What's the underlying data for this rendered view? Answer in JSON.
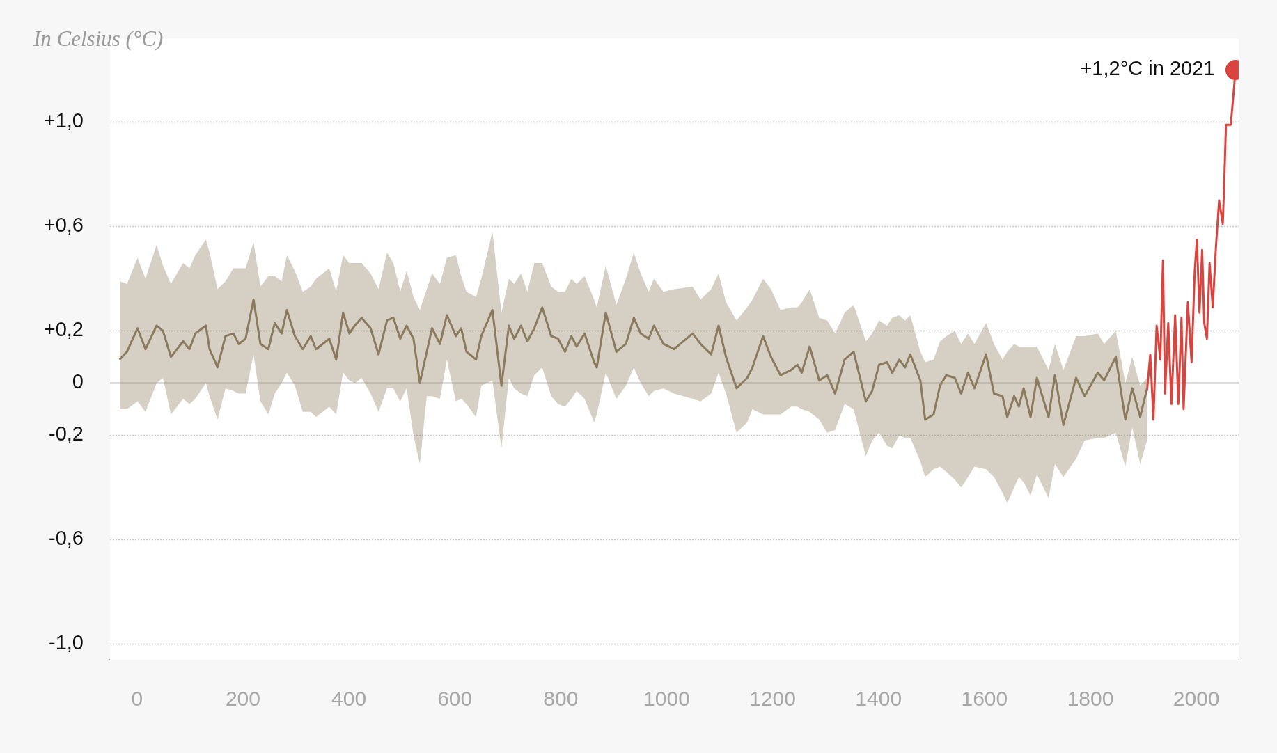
{
  "chart_data": {
    "type": "line",
    "ylabel": "In Celsius (°C)",
    "annotations": [
      "+1,2°C in 2021"
    ],
    "xlim": [
      -51,
      2080
    ],
    "ylim": [
      -1.06,
      1.32
    ],
    "xticks": [
      0,
      200,
      400,
      600,
      800,
      1000,
      1200,
      1400,
      1600,
      1800,
      2000
    ],
    "yticks": [
      {
        "value": 1,
        "label": "+1,0"
      },
      {
        "value": 0.6,
        "label": "+0,6"
      },
      {
        "value": 0.2,
        "label": "+0,2"
      },
      0,
      {
        "value": -0.2,
        "label": "-0,2"
      },
      {
        "value": -0.6,
        "label": "-0,6"
      },
      {
        "value": -1,
        "label": "-1,0"
      }
    ],
    "grid": "y",
    "legend": false,
    "marker": "none",
    "series": [
      {
        "color": "#8b7a5c",
        "x": [
          -33,
          -19,
          1,
          16,
          37,
          49,
          64,
          87,
          99,
          110,
          130,
          137,
          152,
          167,
          182,
          192,
          205,
          220,
          233,
          248,
          260,
          273,
          283,
          298,
          313,
          328,
          338,
          363,
          376,
          389,
          401,
          411,
          424,
          441,
          456,
          472,
          484,
          497,
          509,
          522,
          534,
          547,
          557,
          572,
          585,
          602,
          612,
          622,
          640,
          650,
          671,
          688,
          702,
          712,
          725,
          737,
          750,
          765,
          782,
          795,
          808,
          820,
          830,
          845,
          863,
          868,
          885,
          905,
          923,
          938,
          951,
          966,
          976,
          994,
          1014,
          1049,
          1064,
          1084,
          1098,
          1112,
          1132,
          1152,
          1162,
          1182,
          1197,
          1215,
          1235,
          1247,
          1255,
          1270,
          1288,
          1303,
          1318,
          1336,
          1353,
          1376,
          1388,
          1401,
          1416,
          1426,
          1439,
          1450,
          1460,
          1479,
          1488,
          1504,
          1516,
          1528,
          1544,
          1556,
          1569,
          1581,
          1603,
          1618,
          1634,
          1643,
          1656,
          1665,
          1674,
          1687,
          1699,
          1721,
          1733,
          1749,
          1773,
          1789,
          1814,
          1826,
          1848,
          1866,
          1879,
          1894,
          1907
        ],
        "values": [
          0.09,
          0.12,
          0.21,
          0.13,
          0.22,
          0.2,
          0.1,
          0.16,
          0.13,
          0.19,
          0.22,
          0.13,
          0.06,
          0.18,
          0.19,
          0.15,
          0.17,
          0.32,
          0.15,
          0.13,
          0.23,
          0.19,
          0.28,
          0.18,
          0.13,
          0.18,
          0.13,
          0.17,
          0.09,
          0.27,
          0.19,
          0.22,
          0.25,
          0.21,
          0.11,
          0.24,
          0.25,
          0.17,
          0.22,
          0.17,
          0,
          0.12,
          0.21,
          0.15,
          0.26,
          0.18,
          0.21,
          0.12,
          0.09,
          0.18,
          0.28,
          -0.01,
          0.22,
          0.17,
          0.22,
          0.16,
          0.21,
          0.29,
          0.18,
          0.17,
          0.12,
          0.18,
          0.14,
          0.19,
          0.08,
          0.06,
          0.27,
          0.12,
          0.15,
          0.25,
          0.19,
          0.17,
          0.22,
          0.15,
          0.13,
          0.19,
          0.15,
          0.11,
          0.22,
          0.1,
          -0.02,
          0.02,
          0.06,
          0.18,
          0.1,
          0.03,
          0.05,
          0.07,
          0.04,
          0.14,
          0.01,
          0.03,
          -0.04,
          0.09,
          0.12,
          -0.07,
          -0.03,
          0.07,
          0.08,
          0.04,
          0.09,
          0.06,
          0.11,
          0.01,
          -0.14,
          -0.12,
          -0.01,
          0.03,
          0.02,
          -0.04,
          0.04,
          -0.02,
          0.11,
          -0.04,
          -0.05,
          -0.13,
          -0.05,
          -0.09,
          -0.02,
          -0.13,
          0.02,
          -0.13,
          0.03,
          -0.16,
          0.02,
          -0.05,
          0.04,
          0.01,
          0.1,
          -0.14,
          -0.02,
          -0.13,
          -0.02
        ],
        "upper": [
          0.39,
          0.38,
          0.48,
          0.4,
          0.53,
          0.45,
          0.38,
          0.46,
          0.44,
          0.49,
          0.55,
          0.5,
          0.36,
          0.39,
          0.44,
          0.44,
          0.44,
          0.54,
          0.37,
          0.41,
          0.41,
          0.39,
          0.49,
          0.43,
          0.35,
          0.37,
          0.4,
          0.44,
          0.35,
          0.49,
          0.46,
          0.46,
          0.46,
          0.42,
          0.36,
          0.5,
          0.46,
          0.35,
          0.43,
          0.33,
          0.28,
          0.36,
          0.42,
          0.38,
          0.48,
          0.49,
          0.41,
          0.35,
          0.33,
          0.4,
          0.58,
          0.27,
          0.4,
          0.38,
          0.42,
          0.35,
          0.46,
          0.46,
          0.37,
          0.35,
          0.35,
          0.4,
          0.38,
          0.41,
          0.32,
          0.29,
          0.45,
          0.3,
          0.4,
          0.5,
          0.42,
          0.35,
          0.4,
          0.35,
          0.36,
          0.37,
          0.32,
          0.36,
          0.42,
          0.31,
          0.24,
          0.29,
          0.32,
          0.4,
          0.36,
          0.28,
          0.29,
          0.29,
          0.31,
          0.36,
          0.25,
          0.24,
          0.19,
          0.27,
          0.3,
          0.16,
          0.19,
          0.24,
          0.22,
          0.25,
          0.26,
          0.24,
          0.26,
          0.12,
          0.08,
          0.09,
          0.16,
          0.18,
          0.2,
          0.15,
          0.19,
          0.15,
          0.23,
          0.15,
          0.09,
          0.12,
          0.15,
          0.14,
          0.14,
          0.14,
          0.14,
          0.05,
          0.15,
          0.05,
          0.18,
          0.18,
          0.19,
          0.15,
          0.2,
          0,
          0.1,
          -0.01,
          0.02
        ],
        "lower": [
          -0.1,
          -0.1,
          -0.07,
          -0.11,
          0,
          0.02,
          -0.12,
          -0.06,
          -0.08,
          -0.06,
          0,
          -0.05,
          -0.14,
          -0.02,
          -0.03,
          -0.04,
          -0.04,
          0.11,
          -0.07,
          -0.12,
          -0.04,
          0,
          0.04,
          -0.01,
          -0.11,
          -0.11,
          -0.13,
          -0.09,
          -0.12,
          0.04,
          0.01,
          0,
          0.02,
          -0.04,
          -0.11,
          -0.02,
          -0.02,
          -0.07,
          -0.02,
          -0.2,
          -0.31,
          -0.05,
          -0.05,
          -0.06,
          0.09,
          -0.07,
          -0.06,
          -0.08,
          -0.13,
          -0.01,
          0.01,
          -0.25,
          0.02,
          -0.02,
          -0.04,
          -0.05,
          0.03,
          0.06,
          -0.05,
          -0.08,
          -0.09,
          -0.06,
          -0.03,
          -0.06,
          -0.15,
          -0.12,
          0.04,
          -0.06,
          -0.01,
          0.06,
          0,
          -0.05,
          -0.03,
          -0.02,
          -0.04,
          -0.06,
          -0.07,
          -0.04,
          0.04,
          -0.04,
          -0.19,
          -0.15,
          -0.1,
          -0.12,
          -0.12,
          -0.12,
          -0.09,
          -0.09,
          -0.1,
          -0.11,
          -0.14,
          -0.19,
          -0.18,
          -0.08,
          -0.1,
          -0.28,
          -0.22,
          -0.19,
          -0.24,
          -0.25,
          -0.2,
          -0.21,
          -0.21,
          -0.3,
          -0.36,
          -0.33,
          -0.32,
          -0.34,
          -0.37,
          -0.4,
          -0.36,
          -0.32,
          -0.33,
          -0.36,
          -0.42,
          -0.46,
          -0.4,
          -0.36,
          -0.38,
          -0.43,
          -0.35,
          -0.44,
          -0.31,
          -0.36,
          -0.29,
          -0.22,
          -0.21,
          -0.21,
          -0.19,
          -0.32,
          -0.17,
          -0.31,
          -0.22
        ]
      },
      {
        "color": "#d9443f",
        "x": [
          1907,
          1913,
          1919,
          1925,
          1932,
          1937,
          1941,
          1947,
          1953,
          1960,
          1966,
          1972,
          1976,
          1984,
          1991,
          1997,
          2001,
          2006,
          2011,
          2015,
          2020,
          2025,
          2031,
          2037,
          2043,
          2050,
          2053,
          2056,
          2065,
          2069,
          2074
        ],
        "values": [
          -0.03,
          0.11,
          -0.14,
          0.22,
          0.09,
          0.47,
          -0.04,
          0.23,
          -0.08,
          0.26,
          -0.08,
          0.25,
          -0.1,
          0.31,
          0.08,
          0.43,
          0.55,
          0.27,
          0.51,
          0.23,
          0.17,
          0.46,
          0.29,
          0.52,
          0.7,
          0.61,
          0.79,
          0.99,
          0.99,
          1.08,
          1.2
        ]
      },
      {
        "type": "scatter",
        "marker": "circle",
        "color": "#d9443f",
        "x": [
          2074
        ],
        "values": [
          1.2
        ]
      }
    ]
  }
}
